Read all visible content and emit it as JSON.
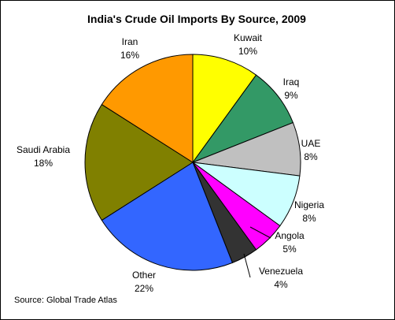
{
  "chart_data": {
    "type": "pie",
    "title": "India's Crude Oil Imports By Source, 2009",
    "source": "Source: Global Trade Atlas",
    "slices": [
      {
        "label": "Kuwait",
        "value": 10,
        "pct_label": "10%",
        "color": "#FFFF00"
      },
      {
        "label": "Iraq",
        "value": 9,
        "pct_label": "9%",
        "color": "#339966"
      },
      {
        "label": "UAE",
        "value": 8,
        "pct_label": "8%",
        "color": "#C0C0C0"
      },
      {
        "label": "Nigeria",
        "value": 8,
        "pct_label": "8%",
        "color": "#CCFFFF"
      },
      {
        "label": "Angola",
        "value": 5,
        "pct_label": "5%",
        "color": "#FF00FF"
      },
      {
        "label": "Venezuela",
        "value": 4,
        "pct_label": "4%",
        "color": "#333333"
      },
      {
        "label": "Other",
        "value": 22,
        "pct_label": "22%",
        "color": "#3366FF"
      },
      {
        "label": "Saudi Arabia",
        "value": 18,
        "pct_label": "18%",
        "color": "#808000"
      },
      {
        "label": "Iran",
        "value": 16,
        "pct_label": "16%",
        "color": "#FF9900"
      }
    ]
  }
}
